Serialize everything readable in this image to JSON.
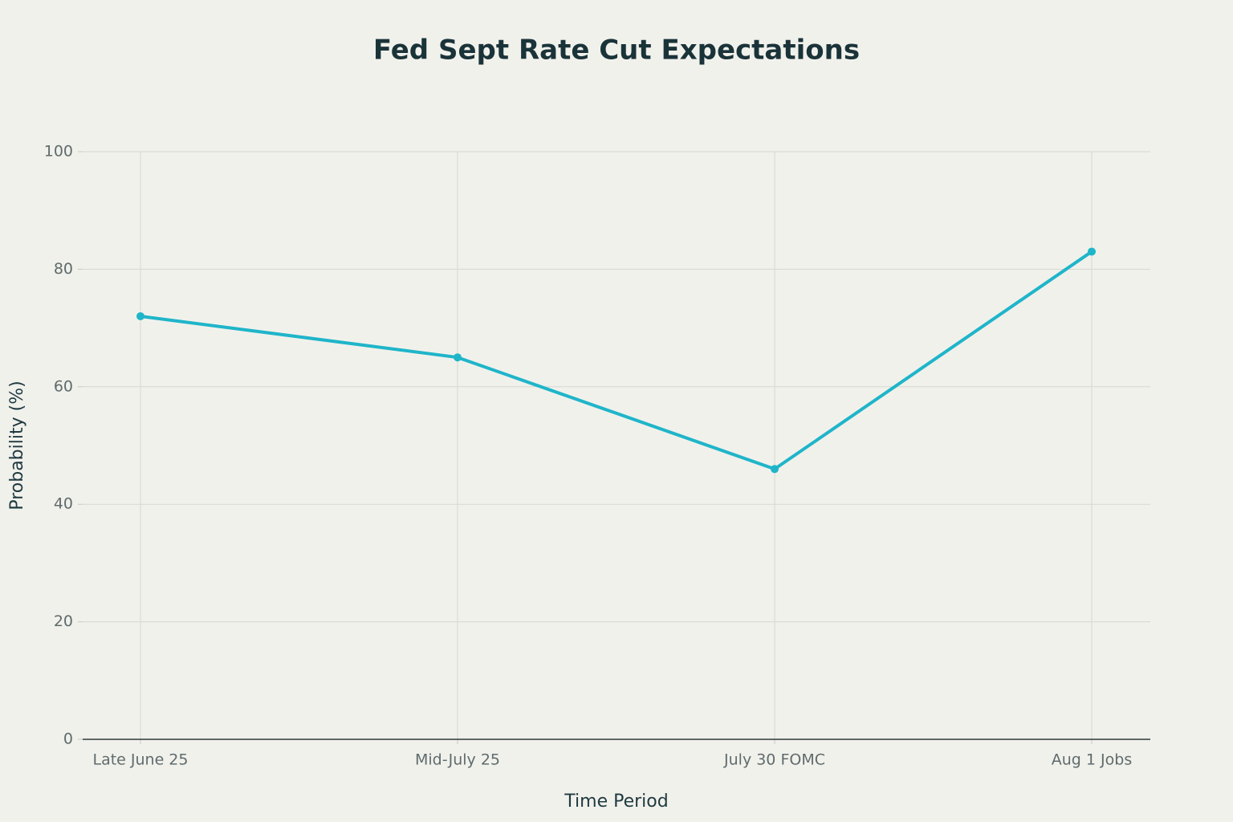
{
  "chart_data": {
    "type": "line",
    "title": "Fed Sept Rate Cut Expectations",
    "x_label": "Time Period",
    "y_label": "Probability (%)",
    "categories": [
      "Late June 25",
      "Mid-July 25",
      "July 30 FOMC",
      "Aug 1 Jobs"
    ],
    "series": [
      {
        "name": "Probability",
        "color": "#1fb5c9",
        "values": [
          72,
          65,
          46,
          83
        ]
      }
    ],
    "ylim": [
      0,
      100
    ],
    "yticks": [
      0,
      20,
      40,
      60,
      80,
      100
    ],
    "grid": true
  }
}
